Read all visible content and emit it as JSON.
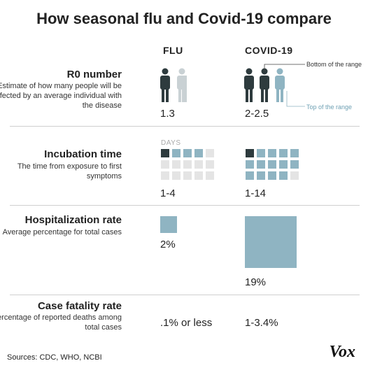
{
  "title": "How seasonal flu and Covid-19 compare",
  "columns": {
    "flu": "FLU",
    "covid": "COVID-19"
  },
  "colors": {
    "dark": "#2e3b3e",
    "blue": "#8fb4c2",
    "light": "#e4e4e4",
    "divider": "#cfcfcf"
  },
  "rows": {
    "r0": {
      "title": "R0 number",
      "description": "Estimate of how many people will be infected by an average individual with the disease",
      "flu_value": "1.3",
      "covid_value": "2-2.5",
      "annotation_bottom": "Bottom of the range",
      "annotation_top": "Top of the range",
      "icons": [
        "person-icon"
      ]
    },
    "incubation": {
      "title": "Incubation time",
      "description": "The time from exposure to first symptoms",
      "days_label": "DAYS",
      "flu_value": "1-4",
      "covid_value": "1-14",
      "flu_days_min": 1,
      "flu_days_max": 4,
      "covid_days_min": 1,
      "covid_days_max": 14
    },
    "hospitalization": {
      "title": "Hospitalization rate",
      "description": "Average percentage for total cases",
      "flu_value": "2%",
      "covid_value": "19%",
      "flu_percent": 2,
      "covid_percent": 19
    },
    "fatality": {
      "title": "Case fatality rate",
      "description": "Percentage of reported deaths among total cases",
      "flu_value": ".1% or less",
      "covid_value": "1-3.4%"
    }
  },
  "footer": {
    "sources": "Sources: CDC, WHO,  NCBI",
    "logo": "Vox"
  }
}
